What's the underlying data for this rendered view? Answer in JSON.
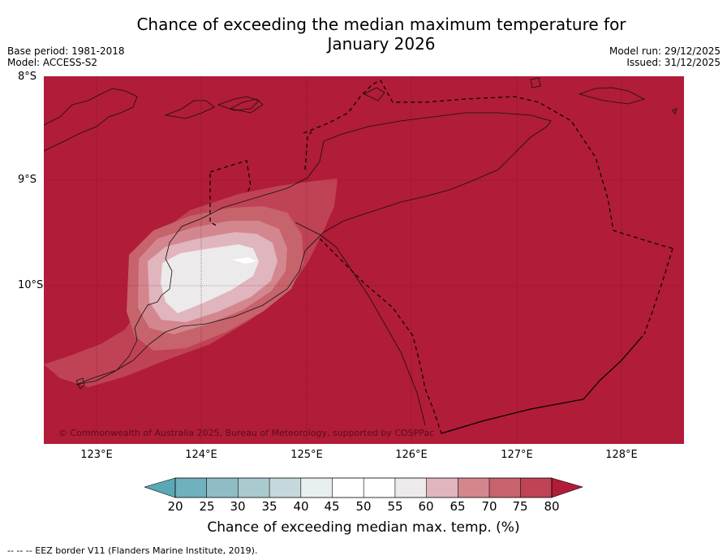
{
  "header": {
    "title_line1": "Chance of exceeding the median maximum temperature for",
    "title_line2": "January 2026",
    "base_period": "Base period: 1981-2018",
    "model": "Model: ACCESS-S2",
    "model_run": "Model run: 29/12/2025",
    "issued": "Issued: 31/12/2025"
  },
  "map": {
    "lat_labels": [
      "8°S",
      "9°S",
      "10°S"
    ],
    "lon_labels": [
      "123°E",
      "124°E",
      "125°E",
      "126°E",
      "127°E",
      "128°E"
    ],
    "copyright": "© Commonwealth of Australia 2025, Bureau of Meteorology, supported by COSPPac",
    "background_color": "#b11c38"
  },
  "colorbar": {
    "ticks": [
      "20",
      "25",
      "30",
      "35",
      "40",
      "45",
      "50",
      "55",
      "60",
      "65",
      "70",
      "75",
      "80"
    ],
    "colors": [
      "#5aa8b5",
      "#6fb1bd",
      "#8ebdc6",
      "#a9cbcf",
      "#c7d8dc",
      "#e8eff1",
      "#ffffff",
      "#ffffff",
      "#eceaea",
      "#e0b5bd",
      "#d4868f",
      "#c6636b",
      "#bf4355",
      "#b11c38"
    ],
    "label": "Chance of exceeding median max. temp. (%)"
  },
  "footer": {
    "legend_text": "--  --  -- EEZ border V11 (Flanders Marine Institute, 2019)."
  }
}
